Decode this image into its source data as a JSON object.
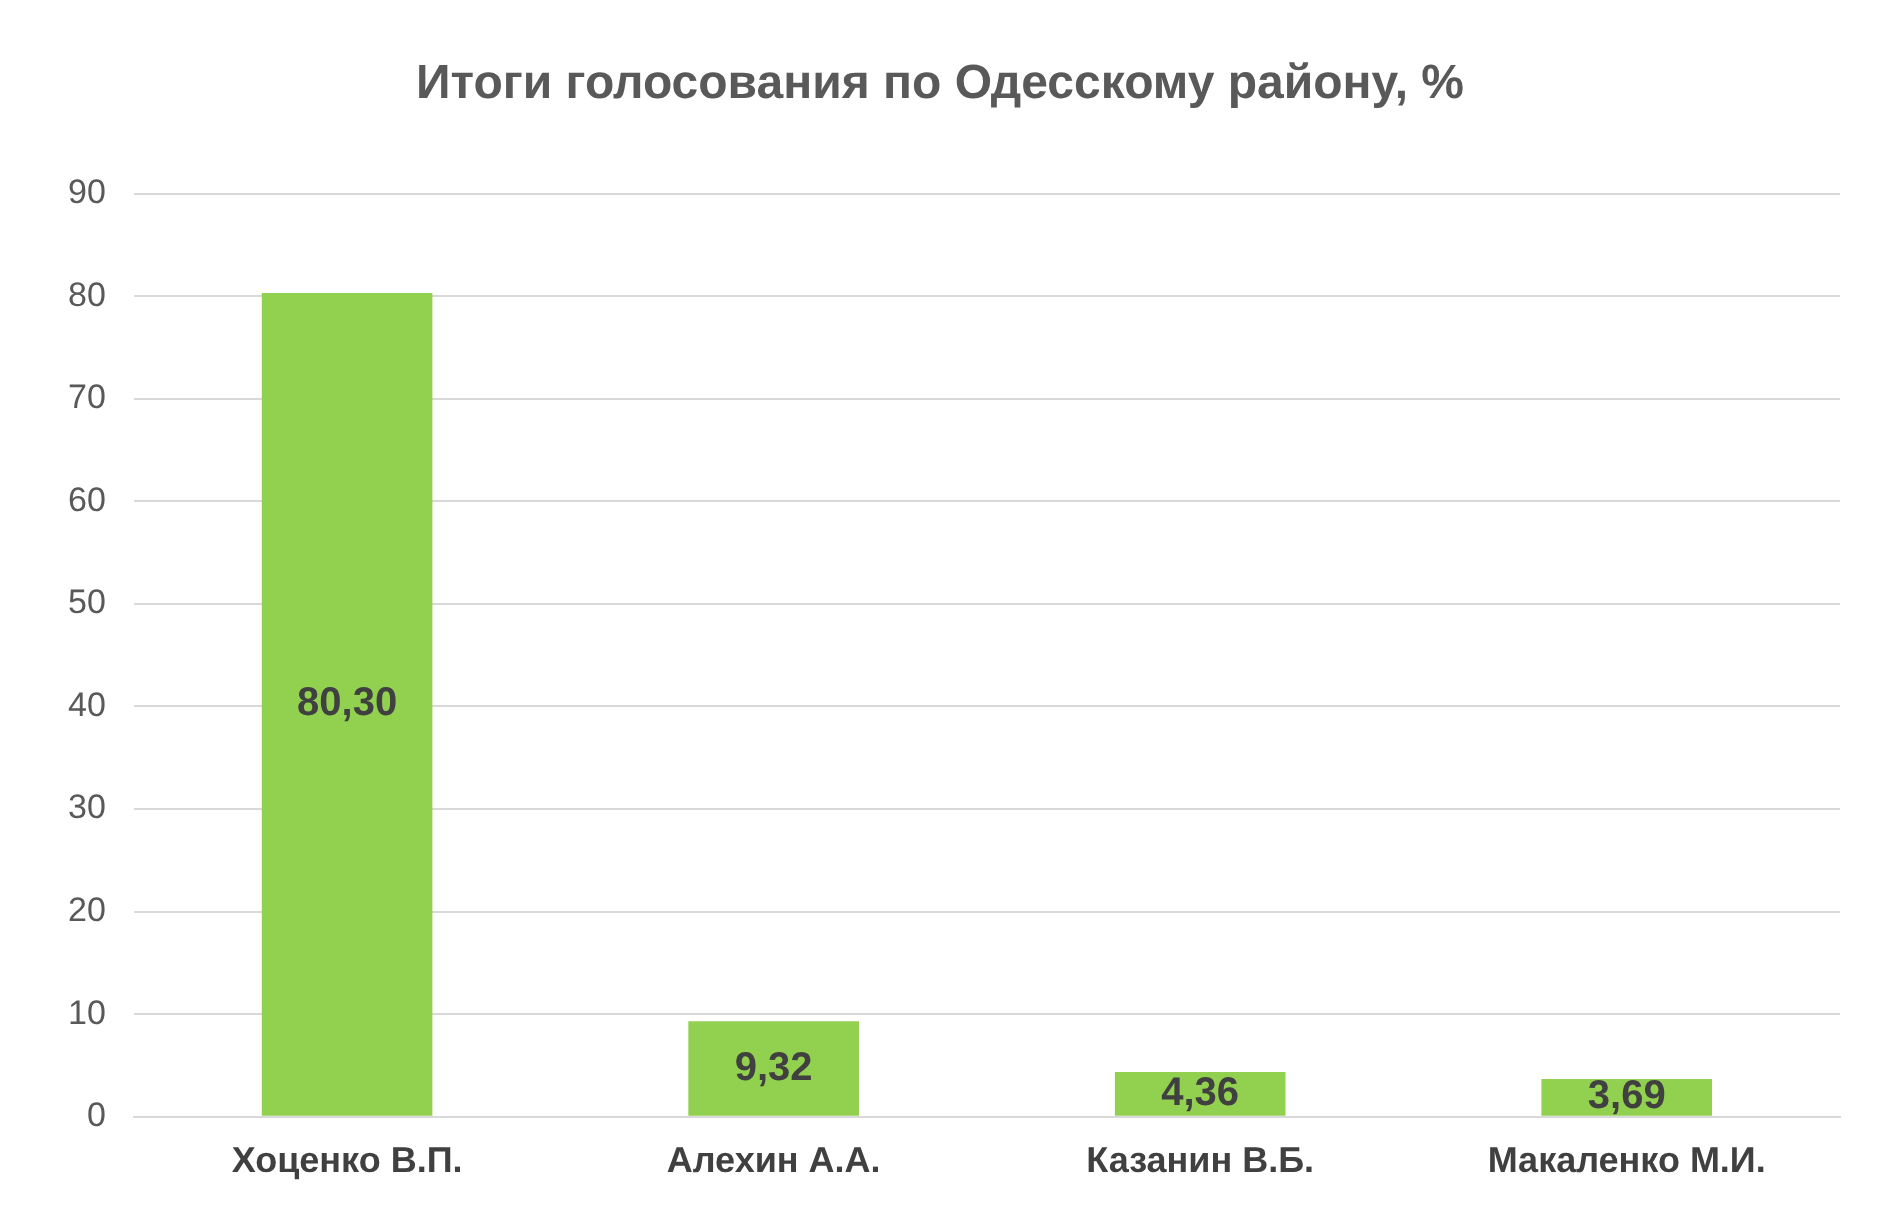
{
  "chart_data": {
    "type": "bar",
    "title": "Итоги голосования по Одесскому району, %",
    "categories": [
      "Хоценко В.П.",
      "Алехин А.А.",
      "Казанин В.Б.",
      "Макаленко М.И."
    ],
    "values": [
      80.3,
      9.32,
      4.36,
      3.69
    ],
    "value_labels": [
      "80,30",
      "9,32",
      "4,36",
      "3,69"
    ],
    "color": "#92d050",
    "ylim": [
      0,
      90
    ],
    "yticks": [
      0,
      10,
      20,
      30,
      40,
      50,
      60,
      70,
      80,
      90
    ],
    "grid": "y",
    "legend": false
  }
}
